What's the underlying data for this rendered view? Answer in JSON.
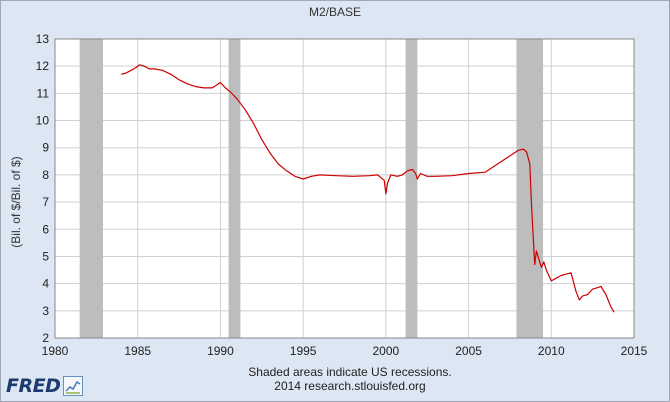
{
  "chart_data": {
    "type": "line",
    "title": "M2/BASE",
    "ylabel": "(Bil. of $/Bil. of $)",
    "xlabel": "",
    "xlim": [
      1980,
      2015
    ],
    "ylim": [
      2,
      13
    ],
    "x_ticks": [
      "1980",
      "1985",
      "1990",
      "1995",
      "2000",
      "2005",
      "2010",
      "2015"
    ],
    "y_ticks": [
      "2",
      "3",
      "4",
      "5",
      "6",
      "7",
      "8",
      "9",
      "10",
      "11",
      "12",
      "13"
    ],
    "grid": true,
    "recessions": [
      [
        1981.5,
        1982.9
      ],
      [
        1990.5,
        1991.2
      ],
      [
        2001.2,
        2001.9
      ],
      [
        2007.9,
        2009.5
      ]
    ],
    "series": [
      {
        "color": "#cc0000",
        "x": [
          1984.0,
          1984.3,
          1984.6,
          1984.9,
          1985.1,
          1985.4,
          1985.7,
          1986.0,
          1986.5,
          1987.0,
          1987.5,
          1988.0,
          1988.5,
          1989.0,
          1989.5,
          1990.0,
          1990.3,
          1990.6,
          1991.0,
          1991.5,
          1992.0,
          1992.5,
          1993.0,
          1993.5,
          1994.0,
          1994.5,
          1995.0,
          1995.5,
          1996.0,
          1997.0,
          1998.0,
          1999.0,
          1999.5,
          1999.9,
          2000.0,
          2000.1,
          2000.3,
          2000.7,
          2001.0,
          2001.3,
          2001.6,
          2001.8,
          2001.9,
          2002.1,
          2002.5,
          2003.0,
          2004.0,
          2005.0,
          2006.0,
          2006.5,
          2007.0,
          2007.5,
          2008.0,
          2008.3,
          2008.5,
          2008.7,
          2008.8,
          2008.9,
          2009.0,
          2009.1,
          2009.25,
          2009.4,
          2009.55,
          2009.7,
          2009.85,
          2010.0,
          2010.3,
          2010.6,
          2010.9,
          2011.2,
          2011.5,
          2011.7,
          2011.9,
          2012.2,
          2012.5,
          2012.8,
          2013.0,
          2013.3,
          2013.6,
          2013.8
        ],
        "y": [
          11.7,
          11.75,
          11.85,
          11.95,
          12.05,
          12.0,
          11.9,
          11.9,
          11.85,
          11.7,
          11.5,
          11.35,
          11.25,
          11.2,
          11.2,
          11.4,
          11.2,
          11.05,
          10.8,
          10.4,
          9.9,
          9.3,
          8.8,
          8.4,
          8.15,
          7.95,
          7.85,
          7.95,
          8.0,
          7.97,
          7.95,
          7.97,
          8.0,
          7.8,
          7.3,
          7.7,
          8.0,
          7.95,
          8.0,
          8.15,
          8.2,
          8.05,
          7.85,
          8.05,
          7.95,
          7.95,
          7.97,
          8.05,
          8.1,
          8.3,
          8.5,
          8.7,
          8.9,
          8.95,
          8.85,
          8.4,
          7.0,
          5.8,
          4.7,
          5.2,
          4.9,
          4.6,
          4.8,
          4.5,
          4.3,
          4.1,
          4.2,
          4.3,
          4.35,
          4.4,
          3.7,
          3.4,
          3.55,
          3.6,
          3.8,
          3.85,
          3.9,
          3.6,
          3.15,
          2.95
        ]
      }
    ]
  },
  "footnote": {
    "line1": "Shaded areas indicate US recessions.",
    "line2": "2014 research.stlouisfed.org"
  },
  "logo": {
    "text": "FRED"
  },
  "colors": {
    "line": "#cc0000",
    "recession": "#bdbdbd",
    "plot_bg": "#ffffff",
    "page_bg": "#dde6f3",
    "grid": "#d0d0d0"
  }
}
